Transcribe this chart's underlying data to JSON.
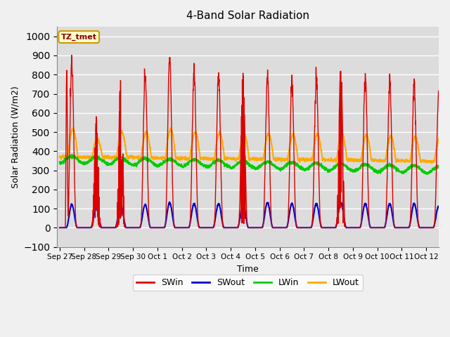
{
  "title": "4-Band Solar Radiation",
  "xlabel": "Time",
  "ylabel": "Solar Radiation (W/m2)",
  "ylim": [
    -100,
    1050
  ],
  "background_color": "#dcdcdc",
  "plot_bg_color": "#dcdcdc",
  "grid_color": "white",
  "annotation_text": "TZ_tmet",
  "annotation_bg": "#ffffcc",
  "annotation_border": "#cc9900",
  "series": {
    "SWin": {
      "color": "#dd0000",
      "lw": 1.0
    },
    "SWout": {
      "color": "#0000cc",
      "lw": 1.5
    },
    "LWin": {
      "color": "#00cc00",
      "lw": 1.5
    },
    "LWout": {
      "color": "#ffaa00",
      "lw": 1.5
    }
  },
  "tick_labels": [
    "Sep 27",
    "Sep 28",
    "Sep 29",
    "Sep 30",
    "Oct 1",
    "Oct 2",
    "Oct 3",
    "Oct 4",
    "Oct 5",
    "Oct 6",
    "Oct 7",
    "Oct 8",
    "Oct 9",
    "Oct 10",
    "Oct 11",
    "Oct 12"
  ],
  "tick_positions": [
    0,
    1,
    2,
    3,
    4,
    5,
    6,
    7,
    8,
    9,
    10,
    11,
    12,
    13,
    14,
    15
  ],
  "swin_peaks": [
    870,
    560,
    800,
    810,
    900,
    810,
    800,
    800,
    800,
    770,
    790,
    835,
    790,
    760,
    750,
    700
  ],
  "swout_peaks": [
    120,
    100,
    120,
    120,
    130,
    125,
    125,
    125,
    130,
    125,
    125,
    130,
    125,
    125,
    125,
    110
  ]
}
